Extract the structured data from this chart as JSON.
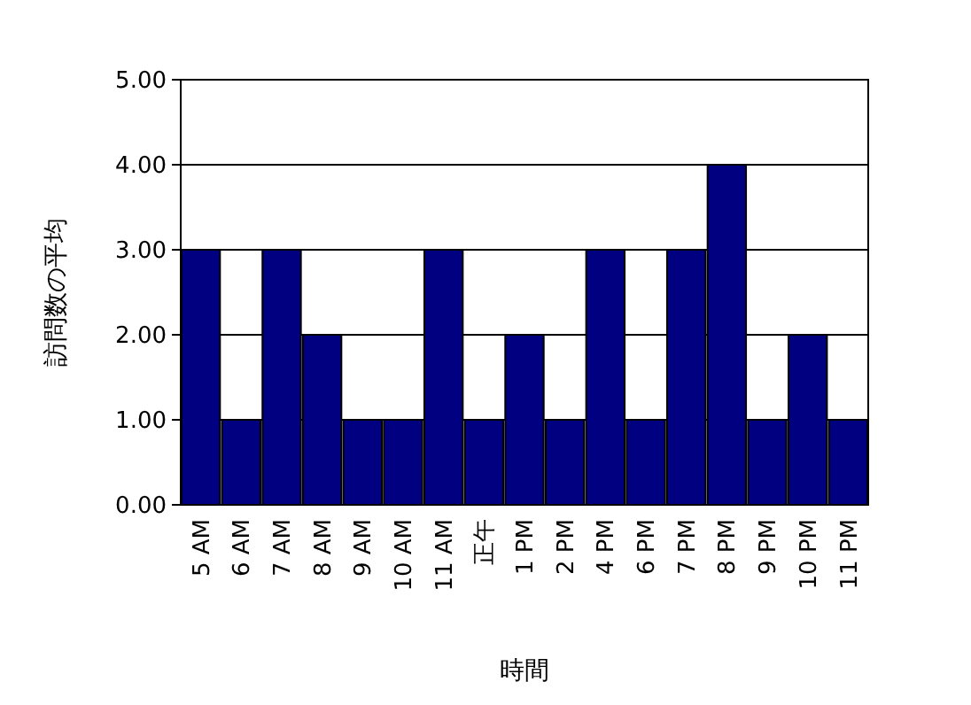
{
  "chart_data": {
    "type": "bar",
    "xlabel": "時間",
    "ylabel": "訪問数の平均",
    "categories": [
      "5 AM",
      "6 AM",
      "7 AM",
      "8 AM",
      "9 AM",
      "10 AM",
      "11 AM",
      "正午",
      "1 PM",
      "2 PM",
      "4 PM",
      "6 PM",
      "7 PM",
      "8 PM",
      "9 PM",
      "10 PM",
      "11 PM"
    ],
    "values": [
      3,
      1,
      3,
      2,
      1,
      1,
      3,
      1,
      2,
      1,
      3,
      1,
      3,
      4,
      1,
      2,
      1
    ],
    "color": "#000080",
    "ylim": [
      0,
      5
    ],
    "yticks": [
      {
        "value": 0,
        "label": "0.00"
      },
      {
        "value": 1,
        "label": "1.00"
      },
      {
        "value": 2,
        "label": "2.00"
      },
      {
        "value": 3,
        "label": "3.00"
      },
      {
        "value": 4,
        "label": "4.00"
      },
      {
        "value": 5,
        "label": "5.00"
      }
    ],
    "grid": "y"
  }
}
